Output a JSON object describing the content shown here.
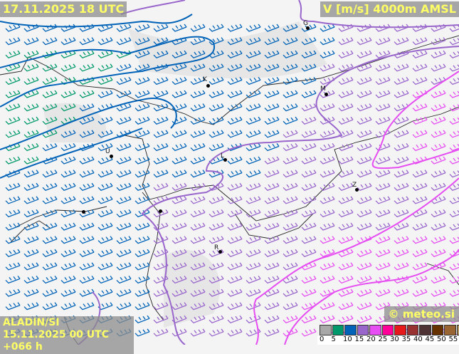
{
  "header": {
    "valid_time": "17.11.2025 18 UTC",
    "parameter": "V [m/s] 4000m AMSL"
  },
  "footer": {
    "model": "ALADIN/SI",
    "run": "15.11.2025 00 UTC +066 h",
    "copyright": "© meteo.si"
  },
  "cities": [
    {
      "label": "G"
    },
    {
      "label": "K"
    },
    {
      "label": "M"
    },
    {
      "label": "U"
    },
    {
      "label": "L"
    },
    {
      "label": "Z"
    },
    {
      "label": "R"
    }
  ],
  "legend": {
    "unit": "m/s",
    "items": [
      {
        "value": "0",
        "color": "#a8a8a8"
      },
      {
        "value": "5",
        "color": "#00996b"
      },
      {
        "value": "10",
        "color": "#0063b8"
      },
      {
        "value": "15",
        "color": "#9966cc"
      },
      {
        "value": "20",
        "color": "#e64df2"
      },
      {
        "value": "25",
        "color": "#ff0099"
      },
      {
        "value": "30",
        "color": "#e61a1a"
      },
      {
        "value": "35",
        "color": "#993333"
      },
      {
        "value": "40",
        "color": "#4d3333"
      },
      {
        "value": "45",
        "color": "#663300"
      },
      {
        "value": "50",
        "color": "#996633"
      },
      {
        "value": "55",
        "color": "#b39966"
      }
    ]
  }
}
